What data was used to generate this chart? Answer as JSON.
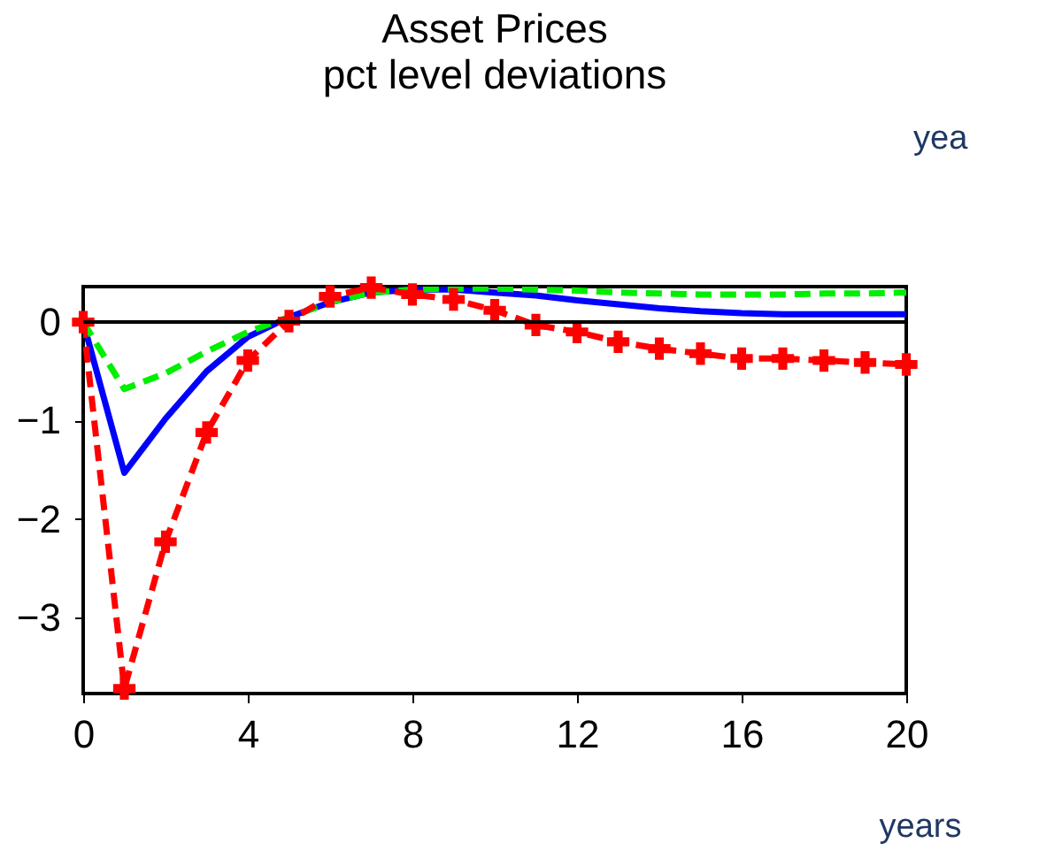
{
  "chart_data": {
    "type": "line",
    "title": "Asset Prices",
    "subtitle": "pct level deviations",
    "x": [
      0,
      1,
      2,
      3,
      4,
      5,
      6,
      7,
      8,
      9,
      10,
      11,
      12,
      13,
      14,
      15,
      16,
      17,
      18,
      19,
      20
    ],
    "series": [
      {
        "color": "#0000ff",
        "line_style": "solid",
        "marker": "none",
        "values": [
          0,
          -1.53,
          -0.98,
          -0.5,
          -0.15,
          0.05,
          0.2,
          0.3,
          0.33,
          0.33,
          0.3,
          0.27,
          0.22,
          0.18,
          0.14,
          0.11,
          0.09,
          0.08,
          0.08,
          0.08,
          0.08
        ]
      },
      {
        "color": "#00ee00",
        "line_style": "dashed",
        "marker": "none",
        "values": [
          0,
          -0.68,
          -0.52,
          -0.3,
          -0.1,
          0.05,
          0.2,
          0.3,
          0.33,
          0.34,
          0.34,
          0.33,
          0.32,
          0.3,
          0.29,
          0.28,
          0.28,
          0.28,
          0.29,
          0.29,
          0.3
        ]
      },
      {
        "color": "#ff0000",
        "line_style": "dashed",
        "marker": "cross",
        "values": [
          0,
          -3.72,
          -2.23,
          -1.12,
          -0.39,
          0.01,
          0.26,
          0.35,
          0.28,
          0.23,
          0.12,
          -0.03,
          -0.1,
          -0.2,
          -0.27,
          -0.32,
          -0.37,
          -0.37,
          -0.39,
          -0.41,
          -0.43
        ]
      }
    ],
    "xlim": [
      0,
      20
    ],
    "xticks": [
      0,
      4,
      8,
      12,
      16,
      20
    ],
    "ylim": [
      -3.77,
      0.36
    ],
    "yticks": [
      -3,
      -2,
      -1,
      0
    ],
    "ref_lines": [
      {
        "axis": "y",
        "value": 0,
        "color": "#000000"
      }
    ],
    "grid": false,
    "annotations": [
      "yea",
      "years"
    ]
  }
}
